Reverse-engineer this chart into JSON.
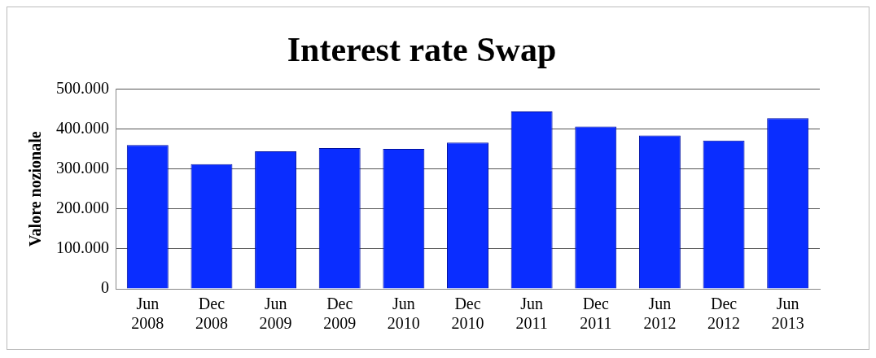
{
  "chart_data": {
    "type": "bar",
    "title": "Interest rate Swap",
    "ylabel": "Valore nozionale",
    "categories": [
      "Jun 2008",
      "Dec 2008",
      "Jun 2009",
      "Dec 2009",
      "Jun 2010",
      "Dec 2010",
      "Jun 2011",
      "Dec 2011",
      "Jun 2012",
      "Dec 2012",
      "Jun 2013"
    ],
    "series": [
      {
        "color": "#0a2dff",
        "values": [
          360000,
          312000,
          344000,
          352000,
          350000,
          366000,
          444000,
          406000,
          384000,
          371000,
          427000
        ]
      }
    ],
    "ylim": [
      0,
      500000
    ],
    "yticks": [
      0,
      {
        "value": 100000,
        "label": "100.000"
      },
      {
        "value": 200000,
        "label": "200.000"
      },
      {
        "value": 300000,
        "label": "300.000"
      },
      {
        "value": 400000,
        "label": "400.000"
      },
      {
        "value": 500000,
        "label": "500.000"
      }
    ],
    "grid": "y",
    "legend": false
  }
}
